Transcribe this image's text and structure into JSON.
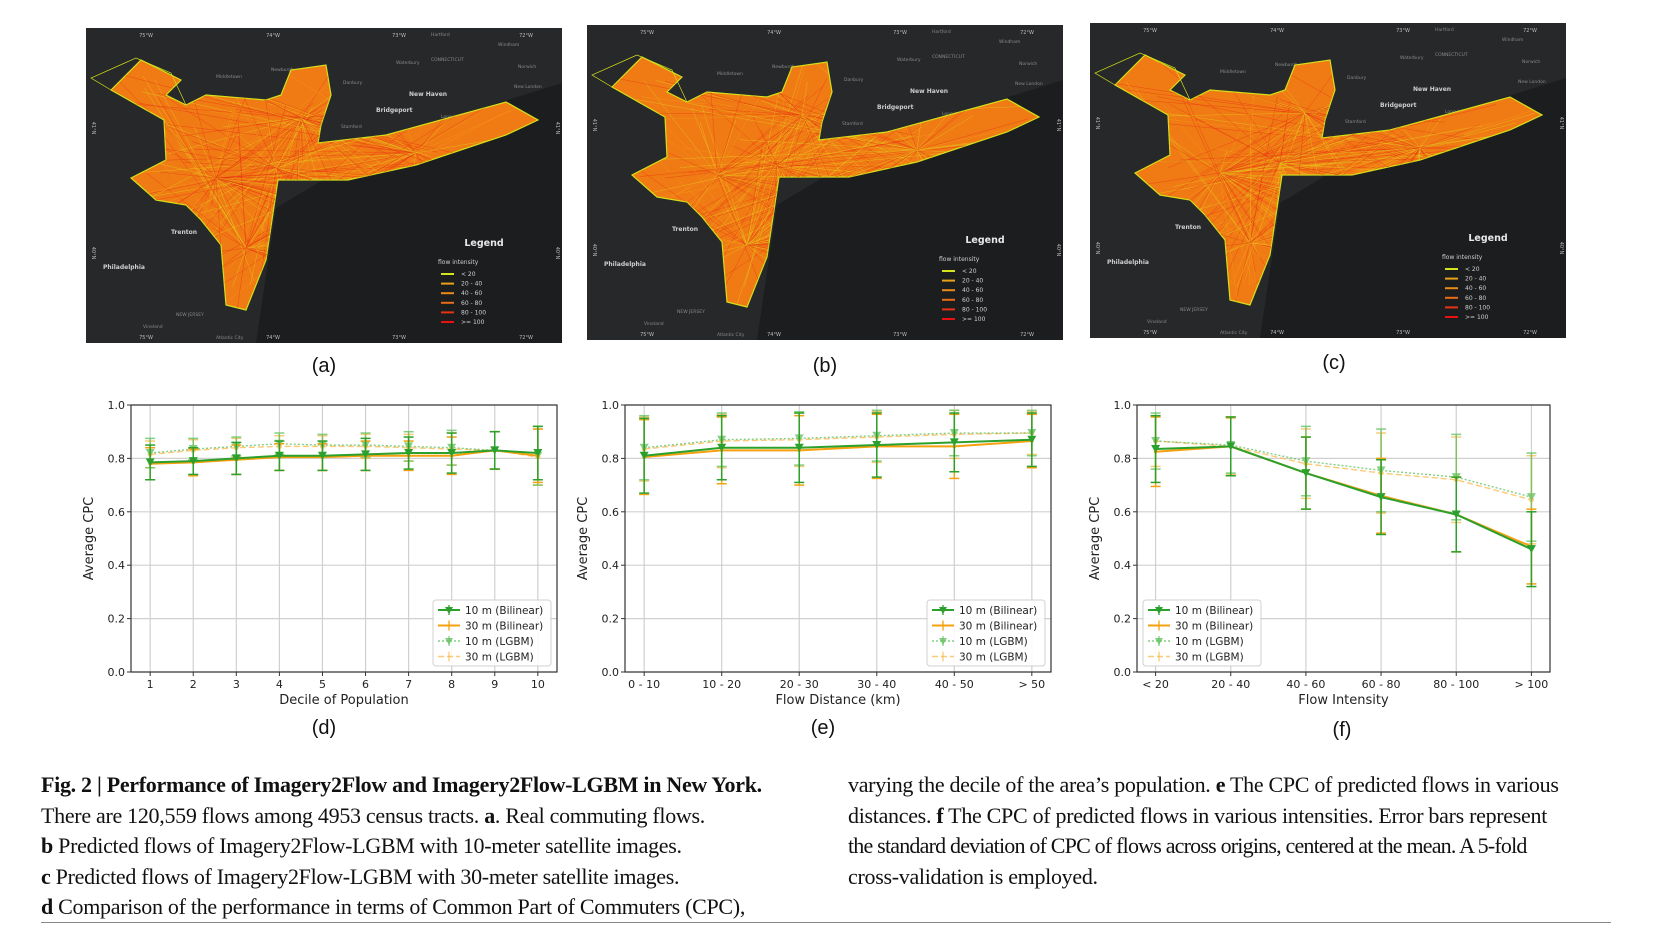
{
  "maps": [
    {
      "id": "a",
      "label": "(a)"
    },
    {
      "id": "b",
      "label": "(b)"
    },
    {
      "id": "c",
      "label": "(c)"
    }
  ],
  "map_common": {
    "lon_labels": [
      "75°W",
      "74°W",
      "73°W",
      "72°W"
    ],
    "lat_labels": [
      "41°N",
      "40°N"
    ],
    "cities": [
      {
        "name": "Hartford",
        "major": false
      },
      {
        "name": "Waterbury",
        "major": false
      },
      {
        "name": "CONNECTICUT",
        "major": false
      },
      {
        "name": "Windham",
        "major": false
      },
      {
        "name": "Norwich",
        "major": false
      },
      {
        "name": "New London",
        "major": false
      },
      {
        "name": "Middletown",
        "major": false
      },
      {
        "name": "Newburgh",
        "major": false
      },
      {
        "name": "Danbury",
        "major": false
      },
      {
        "name": "New Haven",
        "major": true
      },
      {
        "name": "Bridgeport",
        "major": true
      },
      {
        "name": "Long Island Sound",
        "major": false
      },
      {
        "name": "Stamford",
        "major": false
      },
      {
        "name": "Trenton",
        "major": true
      },
      {
        "name": "Philadelphia",
        "major": true
      },
      {
        "name": "NEW JERSEY",
        "major": false
      },
      {
        "name": "Vineland",
        "major": false
      },
      {
        "name": "Atlantic City",
        "major": false
      }
    ],
    "legend": {
      "title": "Legend",
      "subtitle": "flow intensity",
      "items": [
        {
          "label": "< 20",
          "color": "#d6e21c"
        },
        {
          "label": "20 - 40",
          "color": "#e8a21a"
        },
        {
          "label": "40 - 60",
          "color": "#ea8a18"
        },
        {
          "label": "60 - 80",
          "color": "#ea6c16"
        },
        {
          "label": "80 - 100",
          "color": "#e83214"
        },
        {
          "label": ">= 100",
          "color": "#e81010"
        }
      ]
    }
  },
  "chart_series_style": [
    {
      "name": "10 m (Bilinear)",
      "color": "#2ca02c",
      "dash": "",
      "marker": "triangle-down",
      "opacity": 1
    },
    {
      "name": "30 m (Bilinear)",
      "color": "#f5a00f",
      "dash": "",
      "marker": "plus",
      "opacity": 1
    },
    {
      "name": "10 m (LGBM)",
      "color": "#5cc05c",
      "dash": "2,2",
      "marker": "triangle-down",
      "opacity": 0.75
    },
    {
      "name": "30 m (LGBM)",
      "color": "#fbb84a",
      "dash": "6,3",
      "marker": "dot",
      "opacity": 0.75
    }
  ],
  "chart_data": [
    {
      "id": "d",
      "panel_label": "(d)",
      "type": "line",
      "xlabel": "Decile of Population",
      "ylabel": "Average CPC",
      "ylim": [
        0,
        1.0
      ],
      "yticks": [
        "0.0",
        "0.2",
        "0.4",
        "0.6",
        "0.8",
        "1.0"
      ],
      "grid": true,
      "legend": "bottom-right",
      "categories": [
        "1",
        "2",
        "3",
        "4",
        "5",
        "6",
        "7",
        "8",
        "9",
        "10"
      ],
      "series": [
        {
          "name": "10 m (Bilinear)",
          "values": [
            0.785,
            0.79,
            0.8,
            0.81,
            0.81,
            0.815,
            0.82,
            0.82,
            0.83,
            0.82
          ],
          "err": [
            0.065,
            0.05,
            0.06,
            0.055,
            0.055,
            0.06,
            0.06,
            0.075,
            0.07,
            0.1
          ]
        },
        {
          "name": "30 m (Bilinear)",
          "values": [
            0.78,
            0.785,
            0.795,
            0.805,
            0.805,
            0.81,
            0.81,
            0.81,
            0.83,
            0.81
          ],
          "err": [
            0.06,
            0.05,
            0.055,
            0.05,
            0.05,
            0.055,
            0.055,
            0.07,
            0.07,
            0.1
          ]
        },
        {
          "name": "10 m (LGBM)",
          "values": [
            0.82,
            0.835,
            0.845,
            0.855,
            0.85,
            0.85,
            0.845,
            0.84,
            0.83,
            0.81
          ],
          "err": [
            0.055,
            0.04,
            0.035,
            0.04,
            0.04,
            0.045,
            0.055,
            0.065,
            0.07,
            0.11
          ]
        },
        {
          "name": "30 m (LGBM)",
          "values": [
            0.815,
            0.83,
            0.84,
            0.845,
            0.845,
            0.845,
            0.84,
            0.835,
            0.83,
            0.805
          ],
          "err": [
            0.05,
            0.04,
            0.035,
            0.04,
            0.04,
            0.045,
            0.05,
            0.06,
            0.07,
            0.105
          ]
        }
      ]
    },
    {
      "id": "e",
      "panel_label": "(e)",
      "type": "line",
      "xlabel": "Flow Distance (km)",
      "ylabel": "Average CPC",
      "ylim": [
        0,
        1.0
      ],
      "yticks": [
        "0.0",
        "0.2",
        "0.4",
        "0.6",
        "0.8",
        "1.0"
      ],
      "grid": true,
      "legend": "bottom-right",
      "categories": [
        "0 - 10",
        "10 - 20",
        "20 - 30",
        "30 - 40",
        "40 - 50",
        "> 50"
      ],
      "series": [
        {
          "name": "10 m (Bilinear)",
          "values": [
            0.81,
            0.84,
            0.84,
            0.85,
            0.86,
            0.87
          ],
          "err": [
            0.14,
            0.12,
            0.13,
            0.12,
            0.11,
            0.1
          ]
        },
        {
          "name": "30 m (Bilinear)",
          "values": [
            0.805,
            0.83,
            0.83,
            0.845,
            0.845,
            0.865
          ],
          "err": [
            0.14,
            0.125,
            0.13,
            0.12,
            0.12,
            0.1
          ]
        },
        {
          "name": "10 m (LGBM)",
          "values": [
            0.84,
            0.87,
            0.875,
            0.885,
            0.895,
            0.895
          ],
          "err": [
            0.12,
            0.1,
            0.1,
            0.095,
            0.085,
            0.085
          ]
        },
        {
          "name": "30 m (LGBM)",
          "values": [
            0.835,
            0.865,
            0.87,
            0.88,
            0.89,
            0.895
          ],
          "err": [
            0.12,
            0.1,
            0.1,
            0.095,
            0.09,
            0.08
          ]
        }
      ]
    },
    {
      "id": "f",
      "panel_label": "(f)",
      "type": "line",
      "xlabel": "Flow Intensity",
      "ylabel": "Average CPC",
      "ylim": [
        0,
        1.0
      ],
      "yticks": [
        "0.0",
        "0.2",
        "0.4",
        "0.6",
        "0.8",
        "1.0"
      ],
      "grid": true,
      "legend": "bottom-left",
      "categories": [
        "< 20",
        "20 - 40",
        "40 - 60",
        "60 - 80",
        "80 - 100",
        "> 100"
      ],
      "series": [
        {
          "name": "10 m (Bilinear)",
          "values": [
            0.835,
            0.845,
            0.745,
            0.655,
            0.59,
            0.46
          ],
          "err": [
            0.125,
            0.11,
            0.135,
            0.14,
            0.14,
            0.14
          ]
        },
        {
          "name": "30 m (Bilinear)",
          "values": [
            0.825,
            0.845,
            0.745,
            0.66,
            0.59,
            0.47
          ],
          "err": [
            0.13,
            0.11,
            0.135,
            0.14,
            0.14,
            0.14
          ]
        },
        {
          "name": "10 m (LGBM)",
          "values": [
            0.865,
            0.85,
            0.79,
            0.755,
            0.73,
            0.655
          ],
          "err": [
            0.105,
            0.105,
            0.13,
            0.155,
            0.16,
            0.165
          ]
        },
        {
          "name": "30 m (LGBM)",
          "values": [
            0.865,
            0.845,
            0.78,
            0.745,
            0.72,
            0.645
          ],
          "err": [
            0.095,
            0.105,
            0.13,
            0.15,
            0.16,
            0.165
          ]
        }
      ]
    }
  ],
  "caption": {
    "fig_label": "Fig. 2 | Performance of Imagery2Flow and Imagery2Flow-LGBM in New York.",
    "line1": "There are 120,559 flows among 4953 census tracts.",
    "a_label": "a",
    "a_text": ". Real commuting flows.",
    "b_label": "b",
    "b_text": " Predicted flows of Imagery2Flow-LGBM with 10-meter satellite images.",
    "c_label": "c",
    "c_text": " Predicted flows of Imagery2Flow-LGBM with 30-meter satellite images.",
    "d_label": "d",
    "d_text": " Comparison of the performance in terms of Common Part of Commuters (CPC),",
    "r1_text": "varying the decile of the area’s population. ",
    "e_label": "e",
    "e_text": " The CPC of predicted flows in various",
    "r2_text": "distances. ",
    "f_label": "f",
    "f_text": " The CPC of predicted flows in various intensities. Error bars represent",
    "r3_text": "the standard deviation of CPC of flows across origins, centered at the mean. A 5-fold",
    "r4_text": "cross-validation is employed."
  }
}
